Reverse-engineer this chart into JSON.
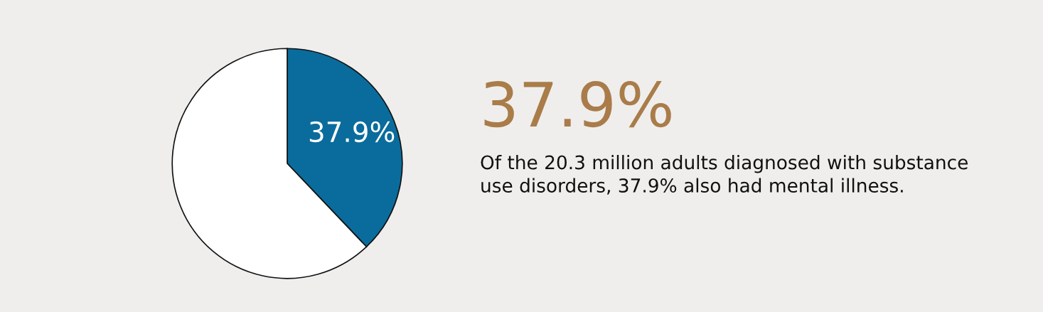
{
  "chart_data": {
    "type": "pie",
    "title": "37.9%",
    "categories": [
      null,
      null
    ],
    "values": [
      37.9,
      62.1
    ],
    "colors": [
      "#0a6c9c",
      "#ffffff"
    ],
    "value_labels": [
      "37.9%",
      null
    ],
    "annotations": [
      "Of the 20.3 million adults diagnosed with substance use disorders, 37.9% also had mental illness."
    ]
  }
}
